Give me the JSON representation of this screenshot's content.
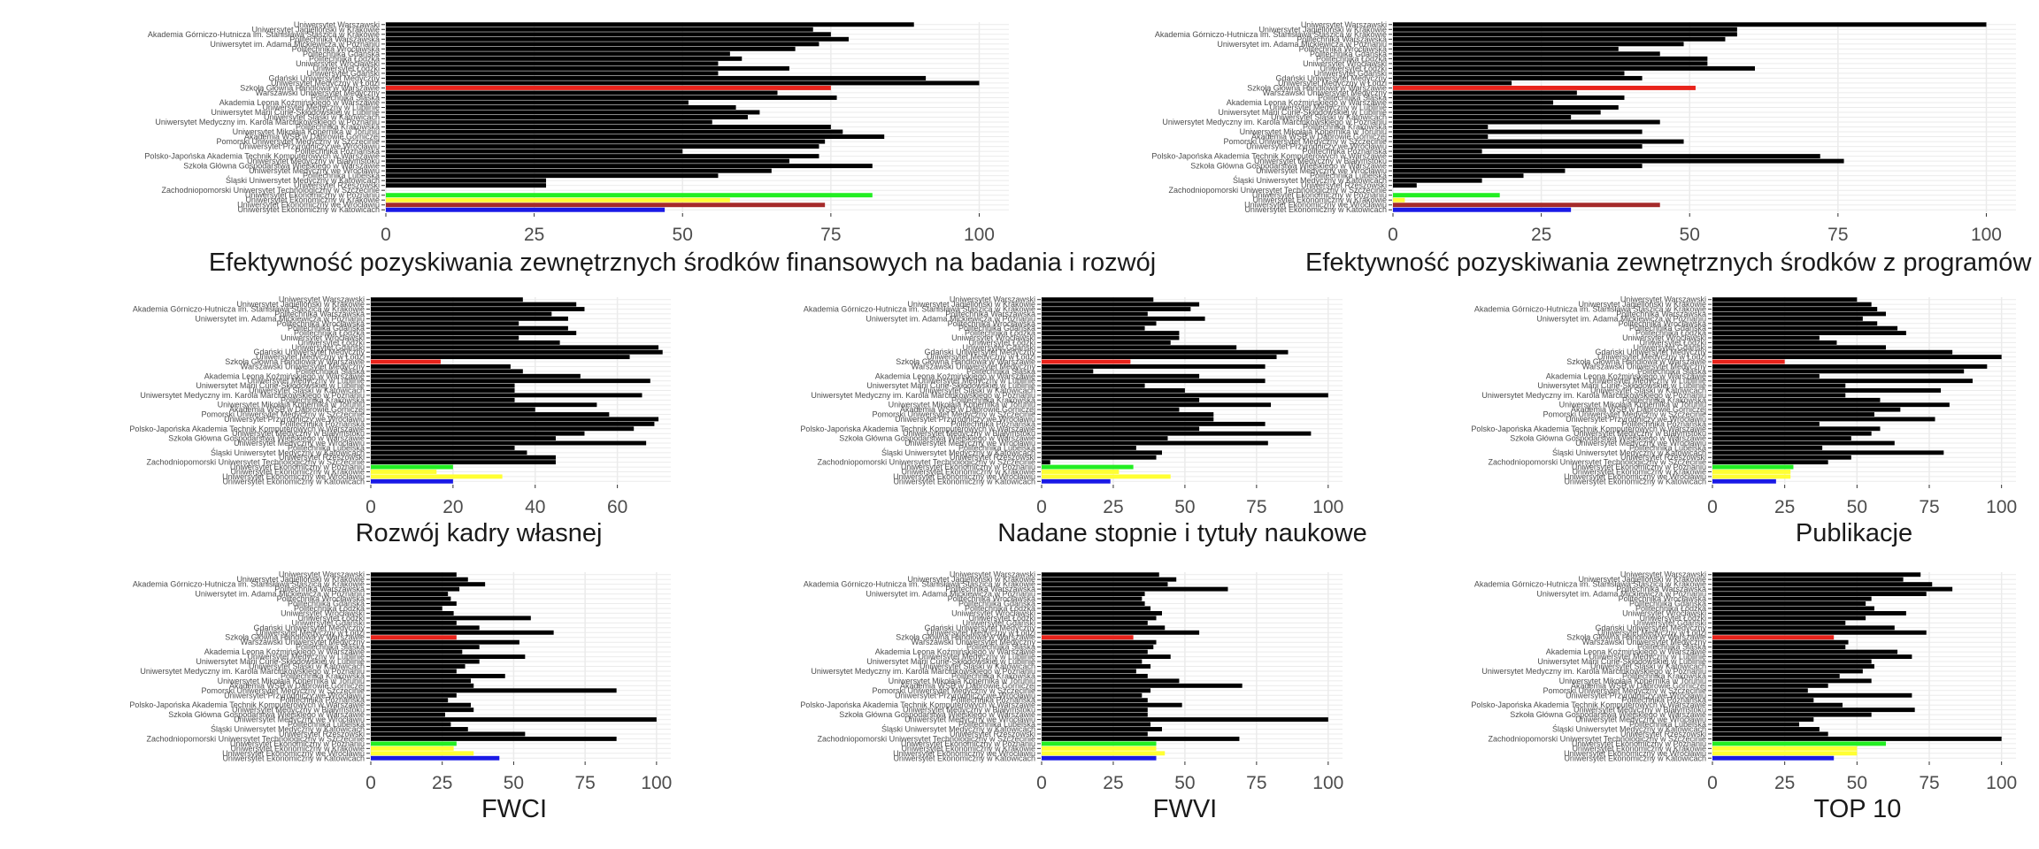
{
  "colors": {
    "default_bar": "#000000",
    "highlight_red": "#e8231b",
    "green": "#22ee22",
    "yellow": "#ffff33",
    "dark_red": "#a52a2a",
    "blue": "#1a1ae6",
    "grid": "#ebebeb"
  },
  "categories": [
    "Uniwersytet Warszawski",
    "Uniwersytet Jagielloński w Krakowie",
    "Akademia Górniczo-Hutnicza im. Stanisława Staszica w Krakowie",
    "Politechnika Warszawska",
    "Uniwersytet im. Adama Mickiewicza w Poznaniu",
    "Politechnika Wrocławska",
    "Politechnika Gdańska",
    "Politechnika Łódzka",
    "Uniwersytet Wrocławski",
    "Uniwersytet Łódzki",
    "Uniwersytet Gdański",
    "Gdański Uniwersytet Medyczny",
    "Uniwersytet Medyczny w Łodzi",
    "Szkoła Główna Handlowa w Warszawie",
    "Warszawski Uniwersytet Medyczny",
    "Politechnika Śląska",
    "Akademia Leona Koźmińskiego w Warszawie",
    "Uniwersytet Medyczny w Lublinie",
    "Uniwersytet Marii Curie-Skłodowskiej w Lublinie",
    "Uniwersytet Śląski w Katowicach",
    "Uniwersytet Medyczny im. Karola Marcinkowskiego w Poznaniu",
    "Politechnika Krakowska",
    "Uniwersytet Mikołaja Kopernika w Toruniu",
    "Akademia WSB w Dąbrowie Górniczej",
    "Pomorski Uniwersytet Medyczny w Szczecinie",
    "Uniwersytet Przyrodniczy we Wrocławiu",
    "Politechnika Poznańska",
    "Polsko-Japońska Akademia Technik Komputerowych w Warszawie",
    "Uniwersytet Medyczny w Białymstoku",
    "Szkoła Główna Gospodarstwa Wiejskiego w Warszawie",
    "Uniwersytet Medyczny we Wrocławiu",
    "Politechnika Lubelska",
    "Śląski Uniwersytet Medyczny w Katowicach",
    "Uniwersytet Rzeszowski",
    "Zachodniopomorski Uniwersytet Technologiczny w Szczecinie",
    "Uniwersytet Ekonomiczny w Poznaniu",
    "Uniwersytet Ekonomiczny w Krakowie",
    "Uniwersytet Ekonomiczny we Wrocławiu",
    "Uniwersytet Ekonomiczny w Katowicach"
  ],
  "chart_data": [
    {
      "type": "bar",
      "orientation": "horizontal",
      "title": "Efektywność pozyskiwania zewnętrznych środków finansowych na badania i rozwój",
      "xlim": [
        0,
        105
      ],
      "xticks": [
        0,
        25,
        50,
        75,
        100
      ],
      "values": [
        89,
        72,
        75,
        78,
        73,
        69,
        58,
        60,
        56,
        68,
        56,
        91,
        100,
        75,
        66,
        76,
        51,
        59,
        63,
        61,
        55,
        75,
        77,
        84,
        74,
        73,
        50,
        73,
        68,
        82,
        65,
        56,
        27,
        27,
        0,
        82,
        58,
        74,
        47
      ],
      "colors": [
        "default_bar",
        "default_bar",
        "default_bar",
        "default_bar",
        "default_bar",
        "default_bar",
        "default_bar",
        "default_bar",
        "default_bar",
        "default_bar",
        "default_bar",
        "default_bar",
        "default_bar",
        "highlight_red",
        "default_bar",
        "default_bar",
        "default_bar",
        "default_bar",
        "default_bar",
        "default_bar",
        "default_bar",
        "default_bar",
        "default_bar",
        "default_bar",
        "default_bar",
        "default_bar",
        "default_bar",
        "default_bar",
        "default_bar",
        "default_bar",
        "default_bar",
        "default_bar",
        "default_bar",
        "default_bar",
        "default_bar",
        "green",
        "yellow",
        "dark_red",
        "blue"
      ]
    },
    {
      "type": "bar",
      "orientation": "horizontal",
      "title": "Efektywność pozyskiwania zewnętrznych środków z programów U",
      "xlim": [
        0,
        105
      ],
      "xticks": [
        0,
        25,
        50,
        75,
        100
      ],
      "values": [
        100,
        58,
        58,
        56,
        49,
        38,
        45,
        53,
        53,
        61,
        39,
        42,
        20,
        51,
        31,
        39,
        27,
        38,
        35,
        30,
        45,
        16,
        42,
        16,
        49,
        42,
        15,
        72,
        76,
        42,
        29,
        22,
        15,
        4,
        0,
        18,
        2,
        45,
        30
      ],
      "colors": [
        "default_bar",
        "default_bar",
        "default_bar",
        "default_bar",
        "default_bar",
        "default_bar",
        "default_bar",
        "default_bar",
        "default_bar",
        "default_bar",
        "default_bar",
        "default_bar",
        "default_bar",
        "highlight_red",
        "default_bar",
        "default_bar",
        "default_bar",
        "default_bar",
        "default_bar",
        "default_bar",
        "default_bar",
        "default_bar",
        "default_bar",
        "default_bar",
        "default_bar",
        "default_bar",
        "default_bar",
        "default_bar",
        "default_bar",
        "default_bar",
        "default_bar",
        "default_bar",
        "default_bar",
        "default_bar",
        "default_bar",
        "green",
        "yellow",
        "dark_red",
        "blue"
      ]
    },
    {
      "type": "bar",
      "orientation": "horizontal",
      "title": "Rozwój kadry własnej",
      "xlim": [
        0,
        73
      ],
      "xticks": [
        0,
        20,
        40,
        60
      ],
      "values": [
        37,
        50,
        52,
        44,
        48,
        36,
        48,
        50,
        36,
        46,
        70,
        71,
        63,
        17,
        34,
        37,
        51,
        68,
        35,
        35,
        66,
        35,
        55,
        40,
        58,
        70,
        69,
        64,
        52,
        45,
        67,
        35,
        38,
        45,
        45,
        20,
        16,
        32,
        20
      ],
      "colors": [
        "default_bar",
        "default_bar",
        "default_bar",
        "default_bar",
        "default_bar",
        "default_bar",
        "default_bar",
        "default_bar",
        "default_bar",
        "default_bar",
        "default_bar",
        "default_bar",
        "default_bar",
        "highlight_red",
        "default_bar",
        "default_bar",
        "default_bar",
        "default_bar",
        "default_bar",
        "default_bar",
        "default_bar",
        "default_bar",
        "default_bar",
        "default_bar",
        "default_bar",
        "default_bar",
        "default_bar",
        "default_bar",
        "default_bar",
        "default_bar",
        "default_bar",
        "default_bar",
        "default_bar",
        "default_bar",
        "default_bar",
        "green",
        "yellow",
        "yellow",
        "blue"
      ]
    },
    {
      "type": "bar",
      "orientation": "horizontal",
      "title": "Nadane stopnie i tytuły naukowe",
      "xlim": [
        0,
        105
      ],
      "xticks": [
        0,
        25,
        50,
        75,
        100
      ],
      "values": [
        39,
        55,
        52,
        37,
        57,
        40,
        36,
        48,
        48,
        45,
        68,
        86,
        82,
        31,
        78,
        18,
        55,
        78,
        36,
        50,
        100,
        55,
        80,
        48,
        60,
        60,
        78,
        55,
        94,
        44,
        79,
        33,
        42,
        40,
        3,
        32,
        27,
        45,
        24
      ],
      "colors": [
        "default_bar",
        "default_bar",
        "default_bar",
        "default_bar",
        "default_bar",
        "default_bar",
        "default_bar",
        "default_bar",
        "default_bar",
        "default_bar",
        "default_bar",
        "default_bar",
        "default_bar",
        "highlight_red",
        "default_bar",
        "default_bar",
        "default_bar",
        "default_bar",
        "default_bar",
        "default_bar",
        "default_bar",
        "default_bar",
        "default_bar",
        "default_bar",
        "default_bar",
        "default_bar",
        "default_bar",
        "default_bar",
        "default_bar",
        "default_bar",
        "default_bar",
        "default_bar",
        "default_bar",
        "default_bar",
        "default_bar",
        "green",
        "yellow",
        "yellow",
        "blue"
      ]
    },
    {
      "type": "bar",
      "orientation": "horizontal",
      "title": "Publikacje",
      "xlim": [
        0,
        105
      ],
      "xticks": [
        0,
        25,
        50,
        75,
        100
      ],
      "values": [
        50,
        55,
        57,
        60,
        52,
        57,
        64,
        67,
        37,
        43,
        60,
        83,
        100,
        25,
        95,
        87,
        37,
        90,
        46,
        79,
        46,
        58,
        82,
        65,
        56,
        77,
        37,
        58,
        55,
        48,
        63,
        38,
        80,
        48,
        40,
        28,
        27,
        27,
        22
      ],
      "colors": [
        "default_bar",
        "default_bar",
        "default_bar",
        "default_bar",
        "default_bar",
        "default_bar",
        "default_bar",
        "default_bar",
        "default_bar",
        "default_bar",
        "default_bar",
        "default_bar",
        "default_bar",
        "highlight_red",
        "default_bar",
        "default_bar",
        "default_bar",
        "default_bar",
        "default_bar",
        "default_bar",
        "default_bar",
        "default_bar",
        "default_bar",
        "default_bar",
        "default_bar",
        "default_bar",
        "default_bar",
        "default_bar",
        "default_bar",
        "default_bar",
        "default_bar",
        "default_bar",
        "default_bar",
        "default_bar",
        "default_bar",
        "green",
        "yellow",
        "yellow",
        "blue"
      ]
    },
    {
      "type": "bar",
      "orientation": "horizontal",
      "title": "FWCI",
      "xlim": [
        0,
        105
      ],
      "xticks": [
        0,
        25,
        50,
        75,
        100
      ],
      "values": [
        30,
        34,
        40,
        31,
        27,
        28,
        30,
        25,
        29,
        56,
        30,
        38,
        64,
        30,
        52,
        38,
        32,
        54,
        38,
        33,
        30,
        47,
        35,
        36,
        86,
        30,
        27,
        35,
        36,
        26,
        100,
        28,
        34,
        54,
        86,
        30,
        29,
        36,
        45
      ],
      "colors": [
        "default_bar",
        "default_bar",
        "default_bar",
        "default_bar",
        "default_bar",
        "default_bar",
        "default_bar",
        "default_bar",
        "default_bar",
        "default_bar",
        "default_bar",
        "default_bar",
        "default_bar",
        "highlight_red",
        "default_bar",
        "default_bar",
        "default_bar",
        "default_bar",
        "default_bar",
        "default_bar",
        "default_bar",
        "default_bar",
        "default_bar",
        "default_bar",
        "default_bar",
        "default_bar",
        "default_bar",
        "default_bar",
        "default_bar",
        "default_bar",
        "default_bar",
        "default_bar",
        "default_bar",
        "default_bar",
        "default_bar",
        "green",
        "yellow",
        "yellow",
        "blue"
      ]
    },
    {
      "type": "bar",
      "orientation": "horizontal",
      "title": "FWVI",
      "xlim": [
        0,
        105
      ],
      "xticks": [
        0,
        25,
        50,
        75,
        100
      ],
      "values": [
        41,
        47,
        44,
        65,
        36,
        35,
        36,
        38,
        42,
        40,
        37,
        43,
        55,
        32,
        40,
        39,
        37,
        45,
        35,
        38,
        33,
        37,
        48,
        70,
        38,
        35,
        37,
        49,
        37,
        37,
        100,
        38,
        42,
        37,
        69,
        40,
        40,
        43,
        40
      ],
      "colors": [
        "default_bar",
        "default_bar",
        "default_bar",
        "default_bar",
        "default_bar",
        "default_bar",
        "default_bar",
        "default_bar",
        "default_bar",
        "default_bar",
        "default_bar",
        "default_bar",
        "default_bar",
        "highlight_red",
        "default_bar",
        "default_bar",
        "default_bar",
        "default_bar",
        "default_bar",
        "default_bar",
        "default_bar",
        "default_bar",
        "default_bar",
        "default_bar",
        "default_bar",
        "default_bar",
        "default_bar",
        "default_bar",
        "default_bar",
        "default_bar",
        "default_bar",
        "default_bar",
        "default_bar",
        "default_bar",
        "default_bar",
        "green",
        "yellow",
        "yellow",
        "blue"
      ]
    },
    {
      "type": "bar",
      "orientation": "horizontal",
      "title": "TOP 10",
      "xlim": [
        0,
        105
      ],
      "xticks": [
        0,
        25,
        50,
        75,
        100
      ],
      "values": [
        72,
        66,
        76,
        83,
        74,
        55,
        53,
        56,
        67,
        53,
        46,
        63,
        74,
        42,
        47,
        46,
        64,
        69,
        55,
        56,
        52,
        44,
        55,
        40,
        33,
        69,
        35,
        45,
        70,
        55,
        35,
        30,
        37,
        40,
        100,
        60,
        50,
        50,
        42
      ],
      "colors": [
        "default_bar",
        "default_bar",
        "default_bar",
        "default_bar",
        "default_bar",
        "default_bar",
        "default_bar",
        "default_bar",
        "default_bar",
        "default_bar",
        "default_bar",
        "default_bar",
        "default_bar",
        "highlight_red",
        "default_bar",
        "default_bar",
        "default_bar",
        "default_bar",
        "default_bar",
        "default_bar",
        "default_bar",
        "default_bar",
        "default_bar",
        "default_bar",
        "default_bar",
        "default_bar",
        "default_bar",
        "default_bar",
        "default_bar",
        "default_bar",
        "default_bar",
        "default_bar",
        "default_bar",
        "default_bar",
        "default_bar",
        "green",
        "yellow",
        "yellow",
        "blue"
      ]
    }
  ]
}
